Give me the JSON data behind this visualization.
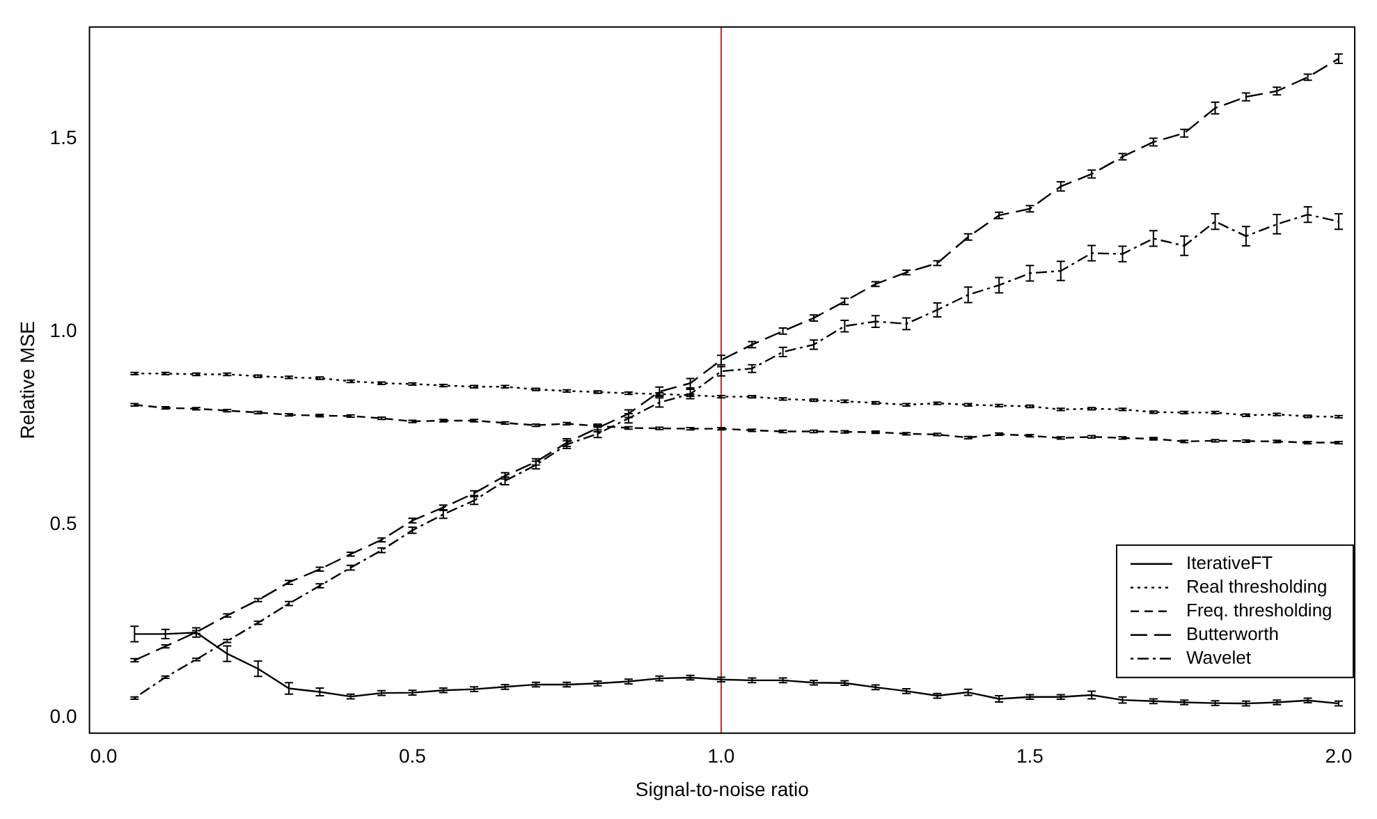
{
  "chart_data": {
    "type": "line",
    "xlabel": "Signal-to-noise ratio",
    "ylabel": "Relative MSE",
    "x": [
      0.05,
      0.1,
      0.15,
      0.2,
      0.25,
      0.3,
      0.35,
      0.4,
      0.45,
      0.5,
      0.55,
      0.6,
      0.65,
      0.7,
      0.75,
      0.8,
      0.85,
      0.9,
      0.95,
      1.0,
      1.05,
      1.1,
      1.15,
      1.2,
      1.25,
      1.3,
      1.35,
      1.4,
      1.45,
      1.5,
      1.55,
      1.6,
      1.65,
      1.7,
      1.75,
      1.8,
      1.85,
      1.9,
      1.95,
      2.0
    ],
    "xlim": [
      -0.023,
      2.026
    ],
    "xticks": [
      {
        "value": 0,
        "label": "0.0"
      },
      {
        "value": 0.5,
        "label": "0.5"
      },
      {
        "value": 1,
        "label": "1.0"
      },
      {
        "value": 1.5,
        "label": "1.5"
      },
      {
        "value": 2,
        "label": "2.0"
      }
    ],
    "ylim": [
      -0.04,
      1.79
    ],
    "yticks": [
      {
        "value": 0,
        "label": "0.0"
      },
      {
        "value": 0.5,
        "label": "0.5"
      },
      {
        "value": 1,
        "label": "1.0"
      },
      {
        "value": 1.5,
        "label": "1.5"
      }
    ],
    "grid": false,
    "legend": "bottom right",
    "ref_lines": [
      {
        "axis": "x",
        "value": 1.0,
        "color": "#e41a1c",
        "line_style": "solid"
      }
    ],
    "series": [
      {
        "name": "IterativeFT",
        "color": "#000000",
        "line_style": "solid",
        "values": [
          0.217,
          0.217,
          0.221,
          0.166,
          0.127,
          0.076,
          0.067,
          0.055,
          0.064,
          0.065,
          0.071,
          0.074,
          0.08,
          0.086,
          0.086,
          0.089,
          0.094,
          0.102,
          0.104,
          0.099,
          0.097,
          0.097,
          0.091,
          0.09,
          0.079,
          0.069,
          0.057,
          0.066,
          0.049,
          0.054,
          0.054,
          0.059,
          0.046,
          0.043,
          0.04,
          0.038,
          0.037,
          0.04,
          0.045,
          0.037
        ],
        "errors": [
          0.02,
          0.012,
          0.012,
          0.02,
          0.02,
          0.015,
          0.01,
          0.006,
          0.006,
          0.006,
          0.006,
          0.006,
          0.006,
          0.006,
          0.006,
          0.006,
          0.006,
          0.006,
          0.006,
          0.006,
          0.006,
          0.006,
          0.006,
          0.006,
          0.006,
          0.006,
          0.006,
          0.008,
          0.008,
          0.006,
          0.006,
          0.01,
          0.008,
          0.006,
          0.006,
          0.006,
          0.006,
          0.006,
          0.006,
          0.006
        ]
      },
      {
        "name": "Real thresholding",
        "color": "#000000",
        "line_style": "dotted",
        "values": [
          0.892,
          0.892,
          0.89,
          0.89,
          0.885,
          0.882,
          0.88,
          0.872,
          0.867,
          0.865,
          0.861,
          0.858,
          0.858,
          0.851,
          0.847,
          0.844,
          0.841,
          0.839,
          0.836,
          0.832,
          0.832,
          0.826,
          0.823,
          0.82,
          0.816,
          0.811,
          0.815,
          0.811,
          0.809,
          0.807,
          0.799,
          0.801,
          0.799,
          0.792,
          0.791,
          0.791,
          0.784,
          0.786,
          0.781,
          0.78
        ],
        "errors": [
          0.003,
          0.003,
          0.003,
          0.003,
          0.003,
          0.003,
          0.003,
          0.003,
          0.003,
          0.003,
          0.003,
          0.003,
          0.003,
          0.003,
          0.003,
          0.003,
          0.003,
          0.003,
          0.003,
          0.003,
          0.003,
          0.003,
          0.003,
          0.003,
          0.003,
          0.003,
          0.003,
          0.003,
          0.003,
          0.003,
          0.003,
          0.003,
          0.003,
          0.003,
          0.003,
          0.003,
          0.003,
          0.003,
          0.003,
          0.003
        ]
      },
      {
        "name": "Freq. thresholding",
        "color": "#000000",
        "line_style": "dashed",
        "values": [
          0.811,
          0.803,
          0.801,
          0.796,
          0.791,
          0.785,
          0.783,
          0.782,
          0.776,
          0.768,
          0.77,
          0.77,
          0.764,
          0.758,
          0.762,
          0.756,
          0.751,
          0.75,
          0.749,
          0.749,
          0.745,
          0.742,
          0.742,
          0.741,
          0.74,
          0.736,
          0.734,
          0.726,
          0.735,
          0.731,
          0.725,
          0.728,
          0.725,
          0.723,
          0.716,
          0.718,
          0.717,
          0.716,
          0.713,
          0.713
        ],
        "errors": [
          0.003,
          0.003,
          0.003,
          0.003,
          0.003,
          0.003,
          0.003,
          0.003,
          0.003,
          0.003,
          0.003,
          0.003,
          0.003,
          0.003,
          0.003,
          0.003,
          0.003,
          0.003,
          0.003,
          0.003,
          0.003,
          0.003,
          0.003,
          0.003,
          0.003,
          0.003,
          0.003,
          0.003,
          0.003,
          0.003,
          0.003,
          0.003,
          0.003,
          0.003,
          0.003,
          0.003,
          0.003,
          0.003,
          0.003,
          0.003
        ]
      },
      {
        "name": "Butterworth",
        "color": "#000000",
        "line_style": "longdash",
        "values": [
          0.149,
          0.185,
          0.222,
          0.265,
          0.305,
          0.351,
          0.385,
          0.424,
          0.461,
          0.511,
          0.545,
          0.582,
          0.627,
          0.663,
          0.713,
          0.751,
          0.788,
          0.845,
          0.867,
          0.927,
          0.967,
          1.002,
          1.036,
          1.079,
          1.124,
          1.154,
          1.178,
          1.246,
          1.302,
          1.319,
          1.377,
          1.409,
          1.454,
          1.492,
          1.515,
          1.58,
          1.609,
          1.624,
          1.66,
          1.708
        ],
        "errors": [
          0.004,
          0.004,
          0.004,
          0.004,
          0.004,
          0.005,
          0.005,
          0.005,
          0.005,
          0.006,
          0.006,
          0.006,
          0.008,
          0.008,
          0.01,
          0.01,
          0.01,
          0.012,
          0.012,
          0.012,
          0.008,
          0.008,
          0.008,
          0.008,
          0.006,
          0.006,
          0.006,
          0.008,
          0.008,
          0.008,
          0.012,
          0.01,
          0.008,
          0.01,
          0.01,
          0.015,
          0.01,
          0.01,
          0.008,
          0.012
        ]
      },
      {
        "name": "Wavelet",
        "color": "#000000",
        "line_style": "dashdot",
        "values": [
          0.051,
          0.105,
          0.151,
          0.199,
          0.246,
          0.296,
          0.342,
          0.389,
          0.434,
          0.486,
          0.527,
          0.563,
          0.614,
          0.655,
          0.708,
          0.736,
          0.776,
          0.817,
          0.839,
          0.898,
          0.905,
          0.948,
          0.967,
          1.015,
          1.027,
          1.021,
          1.057,
          1.096,
          1.121,
          1.152,
          1.158,
          1.204,
          1.202,
          1.242,
          1.223,
          1.286,
          1.248,
          1.279,
          1.304,
          1.286
        ],
        "errors": [
          0.003,
          0.003,
          0.003,
          0.004,
          0.004,
          0.005,
          0.005,
          0.006,
          0.006,
          0.008,
          0.01,
          0.01,
          0.01,
          0.01,
          0.01,
          0.01,
          0.012,
          0.012,
          0.012,
          0.012,
          0.01,
          0.012,
          0.012,
          0.015,
          0.015,
          0.015,
          0.018,
          0.02,
          0.02,
          0.02,
          0.025,
          0.02,
          0.02,
          0.02,
          0.025,
          0.02,
          0.025,
          0.025,
          0.02,
          0.02
        ]
      }
    ]
  }
}
